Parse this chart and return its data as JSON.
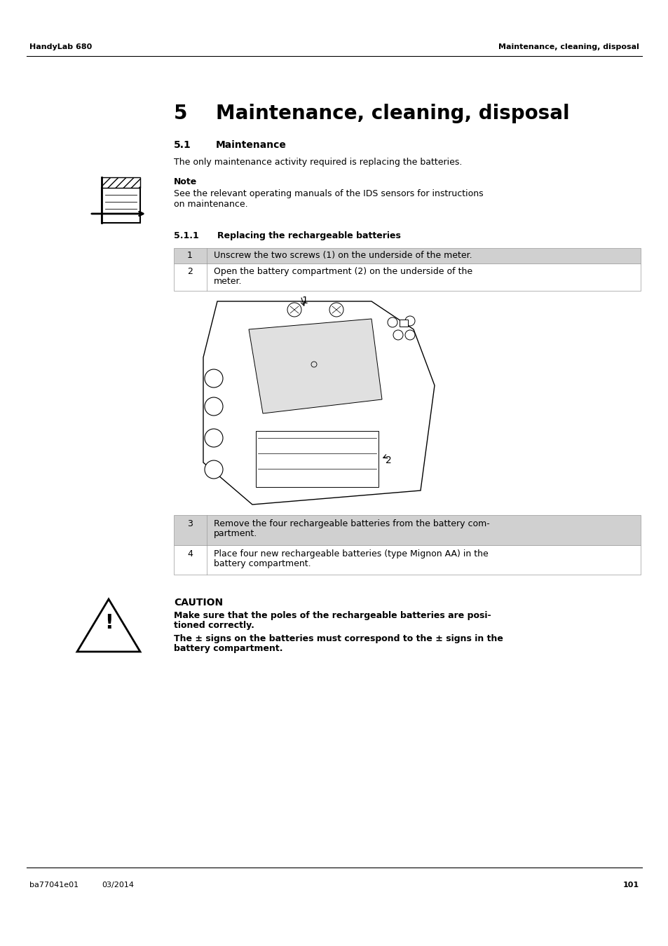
{
  "header_left": "HandyLab 680",
  "header_right": "Maintenance, cleaning, disposal",
  "footer_left": "ba77041e01",
  "footer_date": "03/2014",
  "footer_page": "101",
  "chapter_number": "5",
  "chapter_title": "Maintenance, cleaning, disposal",
  "section_number": "5.1",
  "section_title": "Maintenance",
  "section_body": "The only maintenance activity required is replacing the batteries.",
  "note_title": "Note",
  "note_body1": "See the relevant operating manuals of the IDS sensors for instructions",
  "note_body2": "on maintenance.",
  "subsection_number": "5.1.1",
  "subsection_title": "Replacing the rechargeable batteries",
  "step1_num": "1",
  "step1_text": "Unscrew the two screws (1) on the underside of the meter.",
  "step2_num": "2",
  "step2_text1": "Open the battery compartment (2) on the underside of the",
  "step2_text2": "meter.",
  "step3_num": "3",
  "step3_text1": "Remove the four rechargeable batteries from the battery com-",
  "step3_text2": "partment.",
  "step4_num": "4",
  "step4_text1": "Place four new rechargeable batteries (type Mignon AA) in the",
  "step4_text2": "battery compartment.",
  "caution_title": "CAUTION",
  "caution_text1a": "Make sure that the poles of the rechargeable batteries are posi-",
  "caution_text1b": "tioned correctly.",
  "caution_text2a": "The ± signs on the batteries must correspond to the ± signs in the",
  "caution_text2b": "battery compartment.",
  "img_label1": "1",
  "img_label2": "2",
  "bg_color": "#ffffff",
  "text_color": "#000000",
  "shade_color": "#d0d0d0",
  "white_color": "#ffffff",
  "header_text_size": 8,
  "chapter_num_size": 20,
  "chapter_title_size": 20,
  "section_num_size": 10,
  "section_title_size": 10,
  "body_size": 9,
  "note_title_size": 9,
  "subsection_num_size": 9,
  "subsection_title_size": 9,
  "step_size": 9,
  "caution_title_size": 10,
  "caution_body_size": 9,
  "footer_size": 8
}
